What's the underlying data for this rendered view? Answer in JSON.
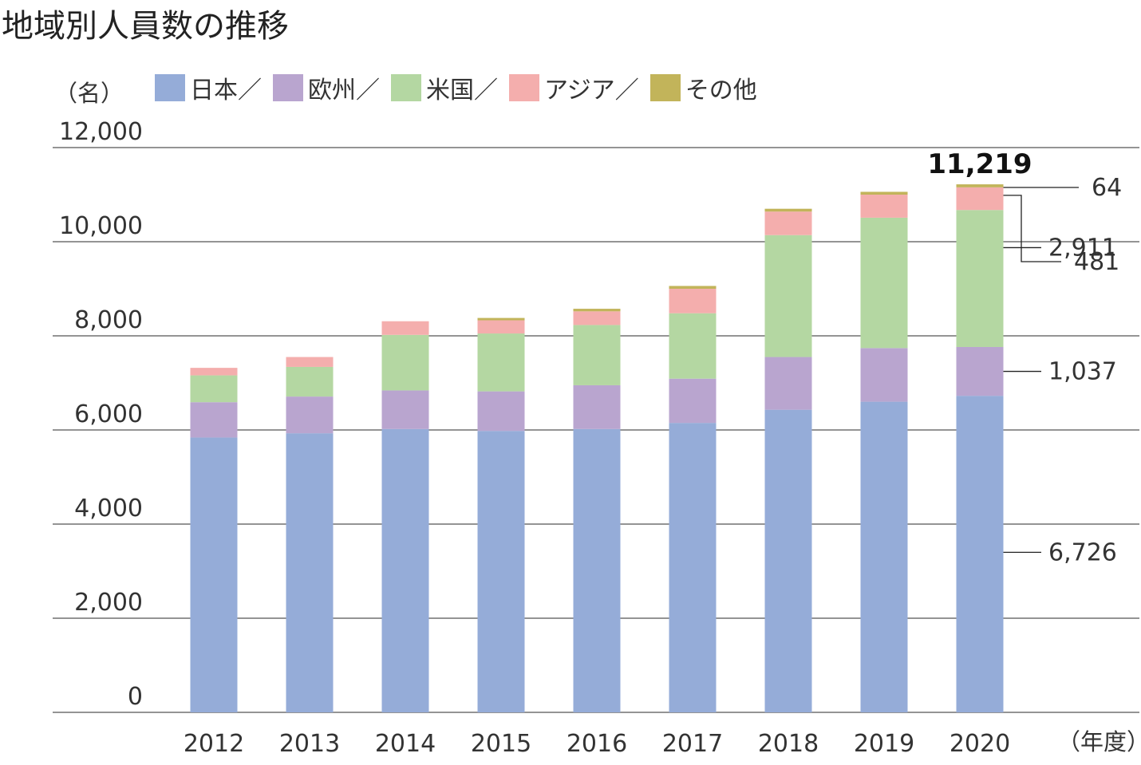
{
  "title": "地域別人員数の推移",
  "unit_label": "（名）",
  "x_unit_label": "（年度）",
  "colors": {
    "japan": "#95acd8",
    "europe": "#b9a5cf",
    "us": "#b4d7a2",
    "asia": "#f4aead",
    "other": "#c2b45a",
    "grid": "#555555",
    "text": "#333333"
  },
  "legend": [
    {
      "label": "日本／",
      "color": "#95acd8"
    },
    {
      "label": "欧州／",
      "color": "#b9a5cf"
    },
    {
      "label": "米国／",
      "color": "#b4d7a2"
    },
    {
      "label": "アジア／",
      "color": "#f4aead"
    },
    {
      "label": "その他",
      "color": "#c2b45a"
    }
  ],
  "chart_data": {
    "type": "bar",
    "stacked": true,
    "title": "地域別人員数の推移",
    "ylabel": "（名）",
    "xlabel": "（年度）",
    "ylim": [
      0,
      12000
    ],
    "yticks": [
      0,
      2000,
      4000,
      6000,
      8000,
      10000,
      12000
    ],
    "ytick_labels": [
      "0",
      "2,000",
      "4,000",
      "6,000",
      "8,000",
      "10,000",
      "12,000"
    ],
    "grid": true,
    "legend_position": "top",
    "categories": [
      "2012",
      "2013",
      "2014",
      "2015",
      "2016",
      "2017",
      "2018",
      "2019",
      "2020"
    ],
    "series": [
      {
        "name": "日本",
        "color": "#95acd8",
        "values": [
          5840,
          5930,
          6020,
          5980,
          6020,
          6150,
          6430,
          6600,
          6726
        ]
      },
      {
        "name": "欧州",
        "color": "#b9a5cf",
        "values": [
          750,
          780,
          820,
          840,
          930,
          940,
          1120,
          1140,
          1037
        ]
      },
      {
        "name": "米国",
        "color": "#b4d7a2",
        "values": [
          570,
          630,
          1180,
          1230,
          1280,
          1390,
          2590,
          2770,
          2911
        ]
      },
      {
        "name": "アジア",
        "color": "#f4aead",
        "values": [
          160,
          210,
          290,
          280,
          290,
          520,
          500,
          490,
          481
        ]
      },
      {
        "name": "その他",
        "color": "#c2b45a",
        "values": [
          0,
          0,
          0,
          50,
          55,
          60,
          60,
          60,
          64
        ]
      }
    ],
    "total_label": "11,219",
    "value_labels_2020": [
      "64",
      "481",
      "2,911",
      "1,037",
      "6,726"
    ]
  }
}
